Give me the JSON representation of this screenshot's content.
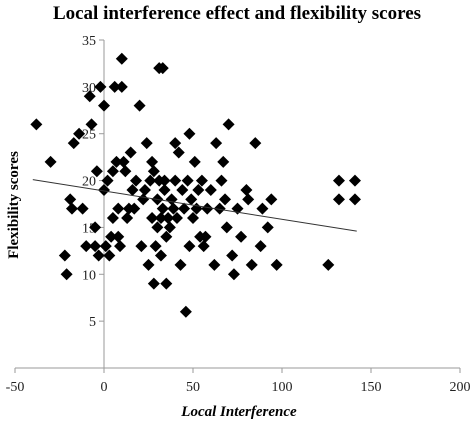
{
  "chart_data": {
    "type": "scatter",
    "title": "Local interference effect and flexibility scores",
    "xlabel": "Local Interference",
    "ylabel": "Flexibility scores",
    "xlim": [
      -50,
      200
    ],
    "ylim": [
      0,
      35
    ],
    "xticks": [
      -50,
      0,
      50,
      100,
      150,
      200
    ],
    "yticks": [
      5,
      10,
      15,
      20,
      25,
      30,
      35
    ],
    "marker": "diamond",
    "marker_color": "#000000",
    "trendline": {
      "x": [
        -40,
        142
      ],
      "y": [
        20.1,
        14.6
      ]
    },
    "points": [
      {
        "x": -38,
        "y": 26
      },
      {
        "x": -30,
        "y": 22
      },
      {
        "x": -22,
        "y": 12
      },
      {
        "x": -21,
        "y": 10
      },
      {
        "x": -19,
        "y": 18
      },
      {
        "x": -18,
        "y": 17
      },
      {
        "x": -17,
        "y": 24
      },
      {
        "x": -14,
        "y": 25
      },
      {
        "x": -12,
        "y": 17
      },
      {
        "x": -10,
        "y": 13
      },
      {
        "x": -8,
        "y": 29
      },
      {
        "x": -7,
        "y": 26
      },
      {
        "x": -5,
        "y": 13
      },
      {
        "x": -5,
        "y": 15
      },
      {
        "x": -4,
        "y": 21
      },
      {
        "x": -3,
        "y": 12
      },
      {
        "x": -2,
        "y": 30
      },
      {
        "x": 0,
        "y": 28
      },
      {
        "x": 0,
        "y": 19
      },
      {
        "x": 1,
        "y": 13
      },
      {
        "x": 2,
        "y": 20
      },
      {
        "x": 3,
        "y": 12
      },
      {
        "x": 4,
        "y": 14
      },
      {
        "x": 5,
        "y": 21
      },
      {
        "x": 5,
        "y": 16
      },
      {
        "x": 6,
        "y": 30
      },
      {
        "x": 7,
        "y": 22
      },
      {
        "x": 8,
        "y": 17
      },
      {
        "x": 8,
        "y": 14
      },
      {
        "x": 9,
        "y": 13
      },
      {
        "x": 10,
        "y": 30
      },
      {
        "x": 10,
        "y": 33
      },
      {
        "x": 11,
        "y": 22
      },
      {
        "x": 12,
        "y": 21
      },
      {
        "x": 13,
        "y": 16
      },
      {
        "x": 14,
        "y": 17
      },
      {
        "x": 15,
        "y": 23
      },
      {
        "x": 16,
        "y": 19
      },
      {
        "x": 17,
        "y": 17
      },
      {
        "x": 18,
        "y": 20
      },
      {
        "x": 20,
        "y": 28
      },
      {
        "x": 21,
        "y": 13
      },
      {
        "x": 22,
        "y": 18
      },
      {
        "x": 23,
        "y": 19
      },
      {
        "x": 24,
        "y": 24
      },
      {
        "x": 25,
        "y": 11
      },
      {
        "x": 26,
        "y": 20
      },
      {
        "x": 27,
        "y": 16
      },
      {
        "x": 27,
        "y": 22
      },
      {
        "x": 28,
        "y": 21
      },
      {
        "x": 28,
        "y": 9
      },
      {
        "x": 29,
        "y": 13
      },
      {
        "x": 30,
        "y": 15
      },
      {
        "x": 30,
        "y": 18
      },
      {
        "x": 31,
        "y": 20
      },
      {
        "x": 31,
        "y": 32
      },
      {
        "x": 32,
        "y": 12
      },
      {
        "x": 32,
        "y": 16
      },
      {
        "x": 33,
        "y": 32
      },
      {
        "x": 33,
        "y": 17
      },
      {
        "x": 34,
        "y": 19
      },
      {
        "x": 34,
        "y": 20
      },
      {
        "x": 35,
        "y": 14
      },
      {
        "x": 35,
        "y": 9
      },
      {
        "x": 36,
        "y": 16
      },
      {
        "x": 37,
        "y": 15
      },
      {
        "x": 38,
        "y": 18
      },
      {
        "x": 39,
        "y": 17
      },
      {
        "x": 40,
        "y": 24
      },
      {
        "x": 40,
        "y": 20
      },
      {
        "x": 41,
        "y": 16
      },
      {
        "x": 42,
        "y": 23
      },
      {
        "x": 43,
        "y": 11
      },
      {
        "x": 44,
        "y": 19
      },
      {
        "x": 45,
        "y": 17
      },
      {
        "x": 46,
        "y": 6
      },
      {
        "x": 47,
        "y": 20
      },
      {
        "x": 48,
        "y": 13
      },
      {
        "x": 48,
        "y": 25
      },
      {
        "x": 49,
        "y": 18
      },
      {
        "x": 50,
        "y": 16
      },
      {
        "x": 51,
        "y": 22
      },
      {
        "x": 52,
        "y": 17
      },
      {
        "x": 53,
        "y": 19
      },
      {
        "x": 54,
        "y": 14
      },
      {
        "x": 55,
        "y": 20
      },
      {
        "x": 56,
        "y": 13
      },
      {
        "x": 57,
        "y": 14
      },
      {
        "x": 58,
        "y": 17
      },
      {
        "x": 60,
        "y": 19
      },
      {
        "x": 62,
        "y": 11
      },
      {
        "x": 63,
        "y": 24
      },
      {
        "x": 65,
        "y": 17
      },
      {
        "x": 66,
        "y": 20
      },
      {
        "x": 67,
        "y": 22
      },
      {
        "x": 68,
        "y": 18
      },
      {
        "x": 69,
        "y": 15
      },
      {
        "x": 70,
        "y": 26
      },
      {
        "x": 72,
        "y": 12
      },
      {
        "x": 73,
        "y": 10
      },
      {
        "x": 75,
        "y": 17
      },
      {
        "x": 77,
        "y": 14
      },
      {
        "x": 80,
        "y": 19
      },
      {
        "x": 81,
        "y": 18
      },
      {
        "x": 83,
        "y": 11
      },
      {
        "x": 85,
        "y": 24
      },
      {
        "x": 88,
        "y": 13
      },
      {
        "x": 89,
        "y": 17
      },
      {
        "x": 92,
        "y": 15
      },
      {
        "x": 94,
        "y": 18
      },
      {
        "x": 97,
        "y": 11
      },
      {
        "x": 126,
        "y": 11
      },
      {
        "x": 132,
        "y": 20
      },
      {
        "x": 132,
        "y": 18
      },
      {
        "x": 141,
        "y": 20
      },
      {
        "x": 141,
        "y": 18
      }
    ]
  }
}
